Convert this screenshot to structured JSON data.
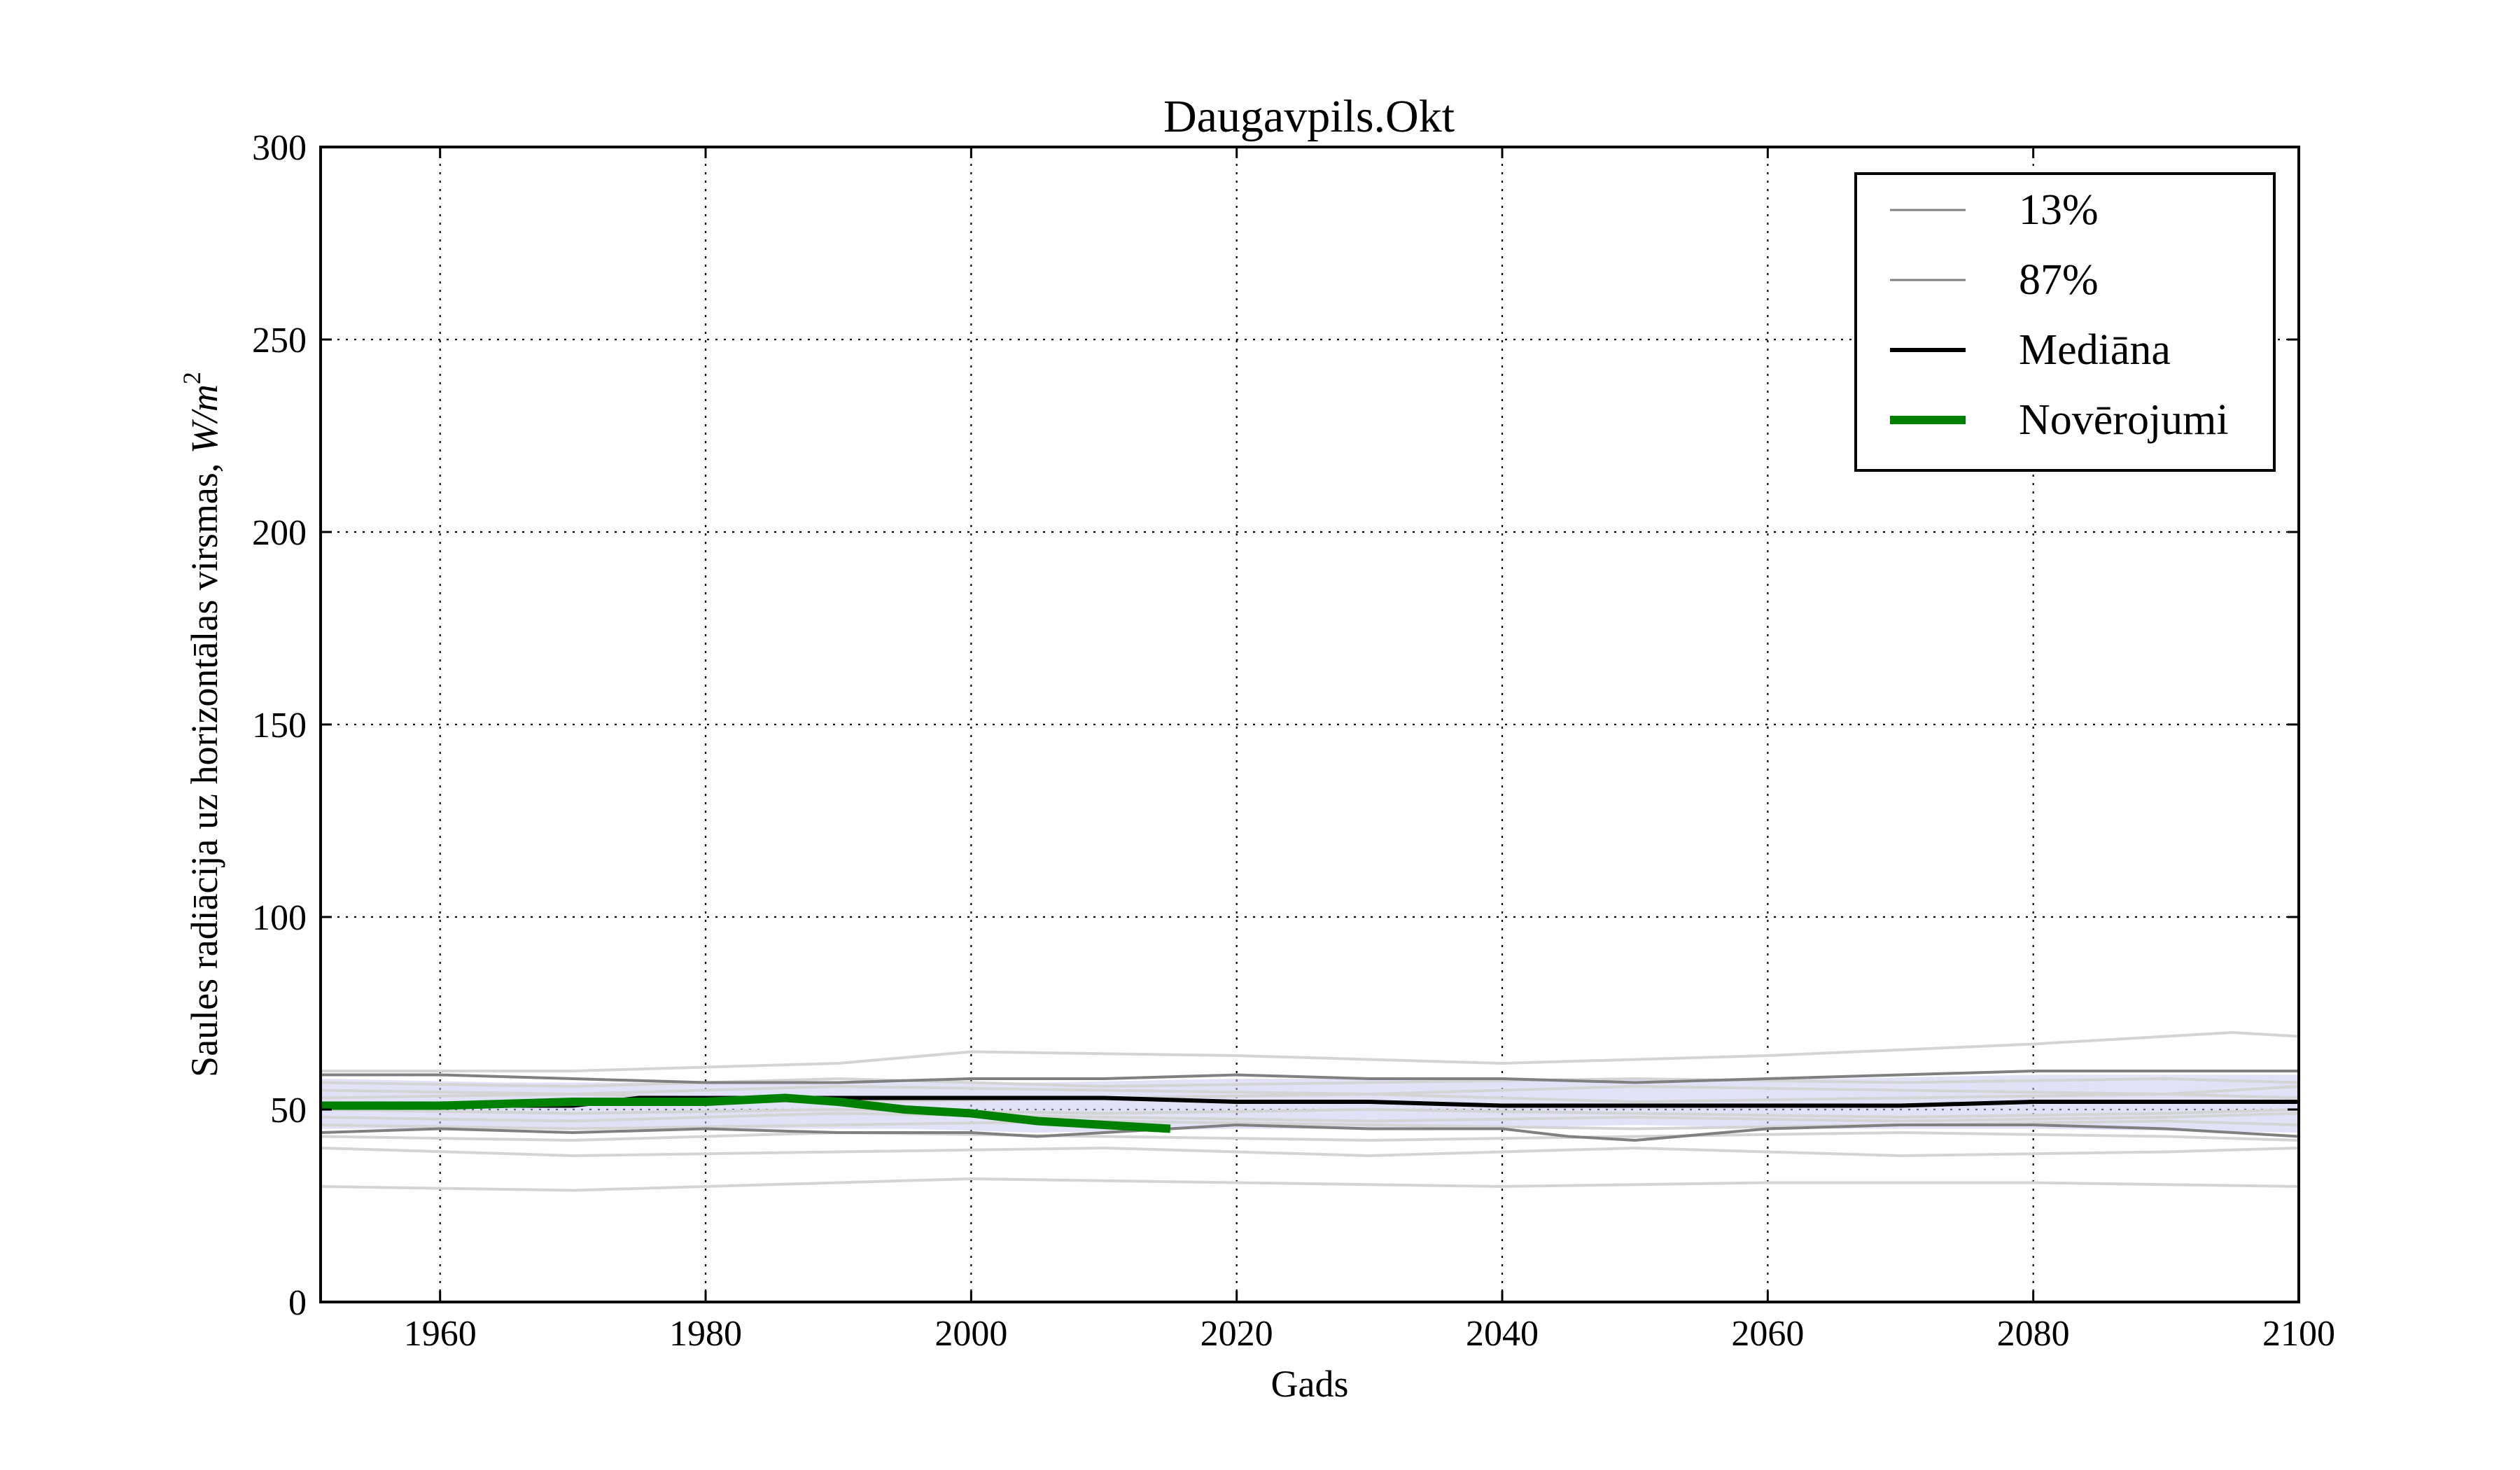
{
  "chart_data": {
    "type": "line",
    "title": "Daugavpils.Okt",
    "xlabel": "Gads",
    "ylabel_text": "Saules radiācija uz horizontālas virsmas, ",
    "ylabel_unit": "W/m",
    "ylabel_unit_exp": "2",
    "xlim": [
      1951,
      2100
    ],
    "ylim": [
      0,
      300
    ],
    "xticks": [
      "1960",
      "1980",
      "2000",
      "2020",
      "2040",
      "2060",
      "2080",
      "2100"
    ],
    "yticks": [
      "0",
      "50",
      "100",
      "150",
      "200",
      "250",
      "300"
    ],
    "grid": true,
    "legend_position": "top-right",
    "colors": {
      "ensemble": "#d4d4d4",
      "band": "#c8c8f0",
      "percentile": "#808080",
      "median": "#000000",
      "observations": "#008000"
    },
    "legend": [
      {
        "label": "13%",
        "color": "#808080",
        "width": "thin"
      },
      {
        "label": "87%",
        "color": "#808080",
        "width": "thin"
      },
      {
        "label": "Mediāna",
        "color": "#000000",
        "width": "medium"
      },
      {
        "label": "Novērojumi",
        "color": "#008000",
        "width": "thick"
      }
    ],
    "series": [
      {
        "name": "13%",
        "x": [
          1951,
          1960,
          1970,
          1980,
          1990,
          2000,
          2005,
          2010,
          2020,
          2030,
          2040,
          2045,
          2050,
          2060,
          2070,
          2080,
          2090,
          2100
        ],
        "y": [
          44,
          45,
          44,
          45,
          44,
          44,
          43,
          44,
          46,
          45,
          45,
          43,
          42,
          45,
          46,
          46,
          45,
          43
        ]
      },
      {
        "name": "87%",
        "x": [
          1951,
          1960,
          1970,
          1980,
          1990,
          2000,
          2010,
          2020,
          2030,
          2040,
          2050,
          2060,
          2070,
          2080,
          2090,
          2100
        ],
        "y": [
          59,
          59,
          58,
          57,
          57,
          58,
          58,
          59,
          58,
          58,
          57,
          58,
          59,
          60,
          60,
          60
        ]
      },
      {
        "name": "Mediāna",
        "x": [
          1951,
          1960,
          1970,
          1975,
          1980,
          1990,
          2000,
          2010,
          2020,
          2030,
          2040,
          2050,
          2060,
          2070,
          2080,
          2090,
          2100
        ],
        "y": [
          51,
          51,
          51,
          53,
          53,
          53,
          53,
          53,
          52,
          52,
          51,
          51,
          51,
          51,
          52,
          52,
          52
        ]
      },
      {
        "name": "Novērojumi",
        "x": [
          1951,
          1960,
          1970,
          1980,
          1986,
          1990,
          1995,
          2000,
          2005,
          2010,
          2015
        ],
        "y": [
          51,
          51,
          52,
          52,
          53,
          52,
          50,
          49,
          47,
          46,
          45
        ]
      }
    ],
    "ensemble_members": [
      {
        "x": [
          1951,
          1970,
          1990,
          2000,
          2020,
          2040,
          2060,
          2080,
          2095,
          2100
        ],
        "y": [
          60,
          60,
          62,
          65,
          64,
          62,
          64,
          67,
          70,
          69
        ]
      },
      {
        "x": [
          1951,
          1970,
          1990,
          2010,
          2030,
          2050,
          2070,
          2090,
          2100
        ],
        "y": [
          40,
          38,
          39,
          40,
          38,
          40,
          38,
          39,
          40
        ]
      },
      {
        "x": [
          1951,
          1970,
          1990,
          2000,
          2020,
          2040,
          2060,
          2080,
          2100
        ],
        "y": [
          30,
          29,
          31,
          32,
          31,
          30,
          31,
          31,
          30
        ]
      },
      {
        "x": [
          1951,
          1970,
          1990,
          2010,
          2030,
          2050,
          2070,
          2090,
          2100
        ],
        "y": [
          55,
          54,
          56,
          55,
          54,
          56,
          55,
          54,
          56
        ]
      },
      {
        "x": [
          1951,
          1970,
          1990,
          2010,
          2030,
          2050,
          2070,
          2090,
          2100
        ],
        "y": [
          48,
          47,
          49,
          48,
          47,
          48,
          47,
          48,
          49
        ]
      },
      {
        "x": [
          1951,
          1970,
          1990,
          2010,
          2030,
          2050,
          2070,
          2090,
          2100
        ],
        "y": [
          57,
          56,
          58,
          56,
          57,
          58,
          57,
          58,
          57
        ]
      },
      {
        "x": [
          1951,
          1970,
          1990,
          2010,
          2030,
          2050,
          2070,
          2090,
          2100
        ],
        "y": [
          46,
          45,
          46,
          47,
          46,
          45,
          46,
          47,
          46
        ]
      },
      {
        "x": [
          1951,
          1970,
          1990,
          2010,
          2030,
          2050,
          2070,
          2090,
          2100
        ],
        "y": [
          53,
          54,
          52,
          53,
          54,
          52,
          53,
          54,
          53
        ]
      },
      {
        "x": [
          1951,
          1970,
          1990,
          2010,
          2030,
          2050,
          2070,
          2090,
          2100
        ],
        "y": [
          50,
          49,
          50,
          49,
          50,
          49,
          48,
          49,
          50
        ]
      },
      {
        "x": [
          1951,
          1970,
          1990,
          2010,
          2030,
          2050,
          2070,
          2090,
          2100
        ],
        "y": [
          43,
          42,
          44,
          43,
          42,
          43,
          44,
          43,
          42
        ]
      }
    ],
    "band_lower": [
      45,
      45,
      45,
      45,
      44,
      45,
      45,
      46,
      45,
      45,
      44
    ],
    "band_upper": [
      58,
      57,
      57,
      57,
      57,
      58,
      58,
      58,
      58,
      59,
      59
    ],
    "band_x": [
      1951,
      1965,
      1980,
      1995,
      2005,
      2020,
      2035,
      2050,
      2065,
      2080,
      2100
    ]
  }
}
